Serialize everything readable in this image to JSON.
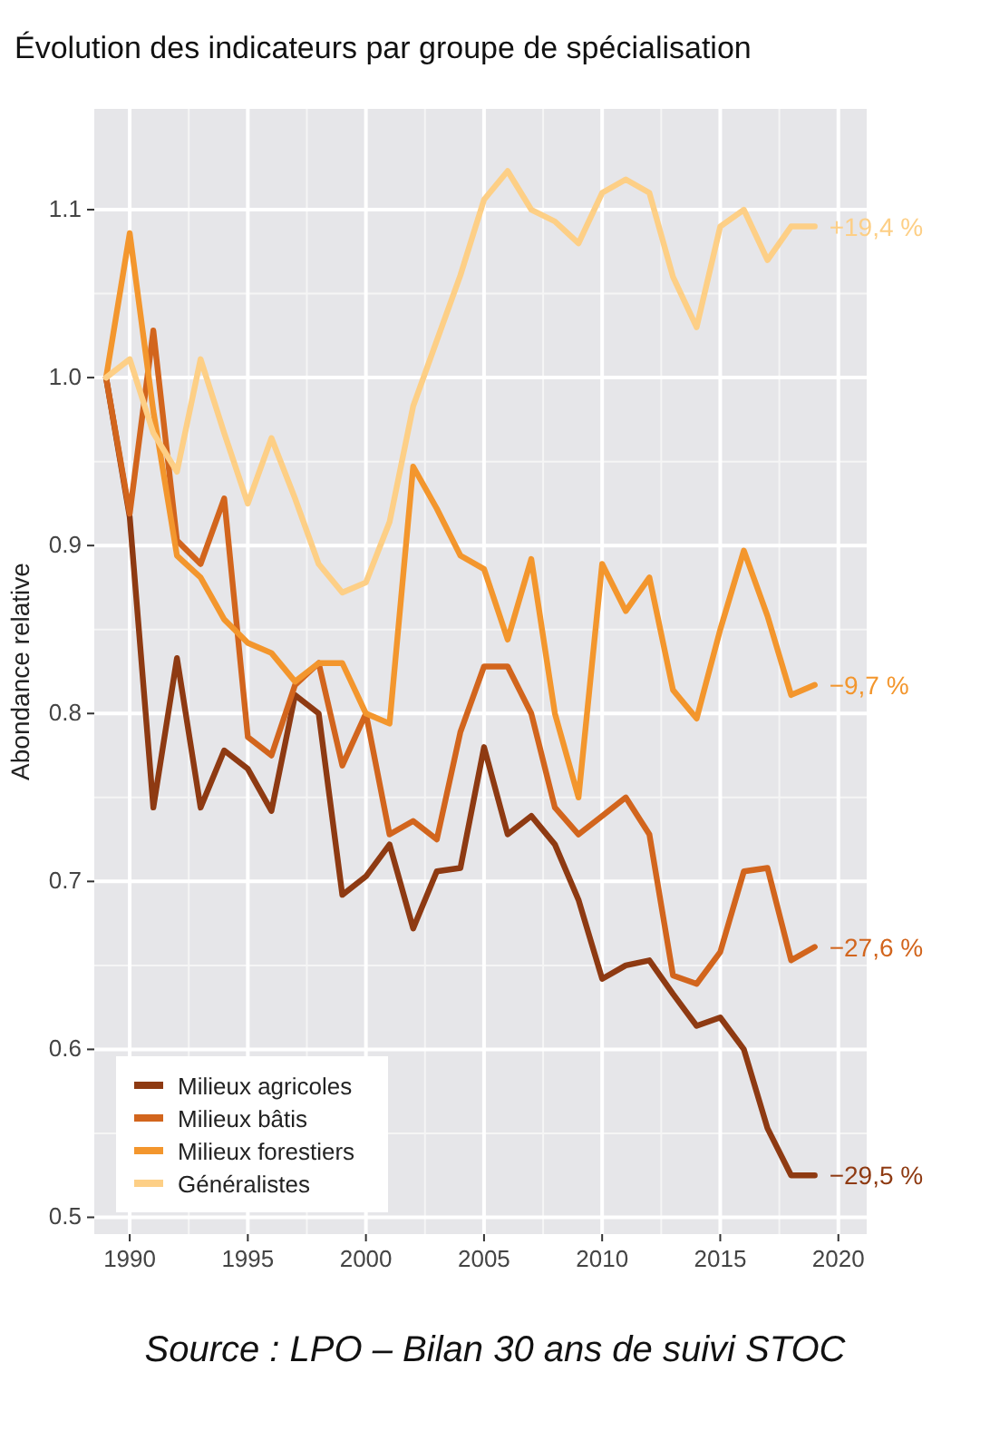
{
  "chart_data": {
    "type": "line",
    "title": "Évolution des indicateurs par groupe de spécialisation",
    "ylabel": "Abondance relative",
    "x": [
      1989,
      1990,
      1991,
      1992,
      1993,
      1994,
      1995,
      1996,
      1997,
      1998,
      1999,
      2000,
      2001,
      2002,
      2003,
      2004,
      2005,
      2006,
      2007,
      2008,
      2009,
      2010,
      2011,
      2012,
      2013,
      2014,
      2015,
      2016,
      2017,
      2018,
      2019
    ],
    "series": [
      {
        "name": "Milieux agricoles",
        "color": "#8e3a12",
        "values": [
          1.0,
          0.917,
          0.744,
          0.833,
          0.744,
          0.778,
          0.767,
          0.742,
          0.811,
          0.8,
          0.692,
          0.703,
          0.722,
          0.672,
          0.706,
          0.708,
          0.78,
          0.728,
          0.739,
          0.722,
          0.689,
          0.642,
          0.65,
          0.653,
          0.633,
          0.614,
          0.619,
          0.6,
          0.553,
          0.525,
          0.525
        ]
      },
      {
        "name": "Milieux bâtis",
        "color": "#d2651d",
        "values": [
          1.0,
          0.919,
          1.028,
          0.903,
          0.889,
          0.928,
          0.786,
          0.775,
          0.817,
          0.83,
          0.769,
          0.8,
          0.728,
          0.736,
          0.725,
          0.789,
          0.828,
          0.828,
          0.8,
          0.744,
          0.728,
          0.739,
          0.75,
          0.728,
          0.644,
          0.639,
          0.658,
          0.706,
          0.708,
          0.653,
          0.661
        ]
      },
      {
        "name": "Milieux forestiers",
        "color": "#f3962d",
        "values": [
          1.0,
          1.086,
          0.98,
          0.894,
          0.881,
          0.856,
          0.842,
          0.836,
          0.819,
          0.83,
          0.83,
          0.8,
          0.794,
          0.947,
          0.922,
          0.894,
          0.886,
          0.844,
          0.892,
          0.8,
          0.75,
          0.889,
          0.861,
          0.881,
          0.814,
          0.797,
          0.85,
          0.897,
          0.858,
          0.811,
          0.817
        ]
      },
      {
        "name": "Généralistes",
        "color": "#fdcf86",
        "values": [
          1.0,
          1.011,
          0.967,
          0.944,
          1.011,
          0.967,
          0.925,
          0.964,
          0.928,
          0.889,
          0.872,
          0.878,
          0.914,
          0.983,
          1.022,
          1.061,
          1.106,
          1.123,
          1.1,
          1.093,
          1.08,
          1.11,
          1.118,
          1.11,
          1.06,
          1.03,
          1.09,
          1.1,
          1.07,
          1.09,
          1.09
        ]
      }
    ],
    "annotations": [
      "−29,5 %",
      "−27,6 %",
      "−9,7 %",
      "+19,4 %",
      "Source : LPO – Bilan 30 ans de suivi STOC"
    ],
    "xlim": [
      1988.5,
      2021.2
    ],
    "xticks": [
      1990,
      1995,
      2000,
      2005,
      2010,
      2015,
      2020
    ],
    "ylim": [
      0.49,
      1.16
    ],
    "yticks": [
      0.5,
      0.6,
      0.7,
      0.8,
      0.9,
      {
        "value": 1,
        "label": "1.0"
      },
      1.1
    ],
    "grid": true,
    "legend": "bottom left",
    "marker": "none",
    "line_style": "solid"
  }
}
